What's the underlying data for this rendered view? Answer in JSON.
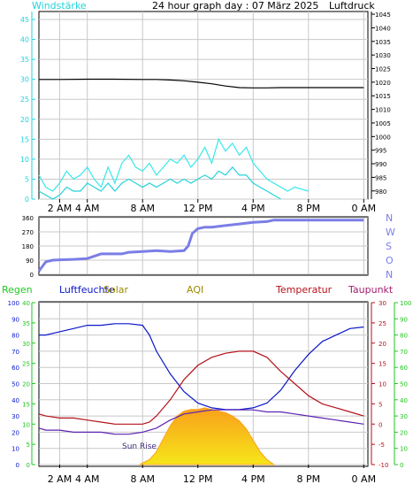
{
  "header": {
    "title": "24 hour graph day : 07 März 2025",
    "left_label": "Windstärke",
    "right_label": "Luftdruck"
  },
  "time_axis": {
    "ticks": [
      "2 AM",
      "4 AM",
      "8 AM",
      "12 PM",
      "4 PM",
      "8 PM",
      "0 AM"
    ],
    "tick_hours": [
      2,
      4,
      8,
      12,
      16,
      20,
      24
    ]
  },
  "colors": {
    "wind": "#22d3d9",
    "gust": "#36e8ea",
    "pressure": "#000000",
    "direction": "#7b7ee6",
    "humidity": "#0a17c9",
    "temperature": "#b5121b",
    "dewpoint": "#5c23b3",
    "solar_top": "#f9a01b",
    "solar_bottom": "#f6e61a",
    "rain": "#22c522",
    "aqi": "#9a8a00",
    "tau": "#a11e6e",
    "light_label": "#3d2b7d"
  },
  "chart_data": [
    {
      "type": "line",
      "title": "24 hour graph day : 07 März 2025",
      "left_axis": {
        "label": "Windstärke",
        "range": [
          0,
          47
        ],
        "ticks": [
          0,
          5,
          10,
          15,
          20,
          25,
          30,
          35,
          40,
          45
        ]
      },
      "right_axis": {
        "label": "Luftdruck",
        "range": [
          977,
          1046
        ],
        "ticks": [
          980,
          985,
          990,
          995,
          1000,
          1005,
          1010,
          1015,
          1020,
          1025,
          1030,
          1035,
          1040,
          1045
        ]
      },
      "x_range": [
        0.5,
        24.3
      ],
      "grid": true,
      "series": [
        {
          "name": "Luftdruck",
          "axis": "right",
          "x": [
            0.5,
            2,
            4,
            6,
            8,
            9,
            10,
            11,
            12,
            13,
            14,
            15,
            16,
            17,
            18,
            20,
            22,
            24
          ],
          "y": [
            1021.0,
            1021.0,
            1021.1,
            1021.1,
            1021.0,
            1021.0,
            1020.8,
            1020.5,
            1020.0,
            1019.4,
            1018.6,
            1018.0,
            1017.9,
            1017.9,
            1018.0,
            1018.0,
            1018.0,
            1018.0
          ]
        },
        {
          "axis": "left",
          "x": [
            0.5,
            1,
            1.5,
            2,
            2.5,
            3,
            3.5,
            4,
            4.5,
            5,
            5.5,
            6,
            6.5,
            7,
            7.5,
            8,
            8.5,
            9,
            9.5,
            10,
            10.5,
            11,
            11.5,
            12,
            12.5,
            13,
            13.5,
            14,
            14.5,
            15,
            15.5,
            16,
            16.5,
            17,
            17.5,
            18
          ],
          "y": [
            2,
            1,
            0,
            1,
            3,
            2,
            2,
            4,
            3,
            2,
            4,
            2,
            4,
            5,
            4,
            3,
            4,
            3,
            4,
            5,
            4,
            5,
            4,
            5,
            6,
            5,
            7,
            6,
            8,
            6,
            6,
            4,
            3,
            2,
            1,
            0
          ]
        },
        {
          "axis": "left",
          "x": [
            0.5,
            1,
            1.5,
            2,
            2.5,
            3,
            3.5,
            4,
            4.5,
            5,
            5.5,
            6,
            6.5,
            7,
            7.5,
            8,
            8.5,
            9,
            9.5,
            10,
            10.5,
            11,
            11.5,
            12,
            12.5,
            13,
            13.5,
            14,
            14.5,
            15,
            15.5,
            16,
            16.5,
            17,
            17.5,
            18,
            18.5,
            19,
            20
          ],
          "y": [
            6,
            3,
            2,
            4,
            7,
            5,
            6,
            8,
            5,
            3,
            8,
            4,
            9,
            11,
            8,
            7,
            9,
            6,
            8,
            10,
            9,
            11,
            8,
            10,
            13,
            9,
            15,
            12,
            14,
            11,
            13,
            9,
            7,
            5,
            4,
            3,
            2,
            3,
            2
          ]
        }
      ]
    },
    {
      "type": "scatter",
      "left_axis": {
        "range": [
          0,
          360
        ],
        "ticks": [
          0,
          90,
          180,
          270,
          360
        ]
      },
      "right_labels": [
        "N",
        "W",
        "S",
        "O",
        "N"
      ],
      "series": [
        {
          "x": [
            0.5,
            1.0,
            1.5,
            2,
            3,
            4,
            5,
            6,
            6.5,
            7,
            8,
            9,
            10,
            11,
            11.3,
            11.6,
            12,
            12.5,
            13,
            14,
            15,
            16,
            17,
            17.5,
            18,
            19,
            20,
            21,
            22,
            23,
            24
          ],
          "y": [
            20,
            80,
            90,
            92,
            95,
            100,
            130,
            130,
            130,
            140,
            145,
            150,
            145,
            150,
            180,
            260,
            290,
            300,
            300,
            310,
            320,
            330,
            335,
            345,
            345,
            345,
            345,
            345,
            345,
            345,
            345
          ]
        }
      ]
    },
    {
      "type": "line",
      "legend": [
        "Regen",
        "Luftfeuchte",
        "Solar",
        "AQI",
        "Temperatur",
        "Taupunkt"
      ],
      "axes": {
        "humidity": {
          "range": [
            0,
            100
          ],
          "ticks": [
            0,
            10,
            20,
            30,
            40,
            50,
            60,
            70,
            80,
            90,
            100
          ]
        },
        "rain": {
          "range": [
            0,
            40
          ],
          "ticks": [
            0,
            5,
            10,
            15,
            20,
            25,
            30,
            35,
            40
          ]
        },
        "temperature": {
          "range": [
            -10,
            30
          ],
          "ticks": [
            -10,
            -5,
            0,
            5,
            10,
            15,
            20,
            25,
            30
          ]
        },
        "tau": {
          "range": [
            0,
            100
          ],
          "ticks": [
            0,
            10,
            20,
            30,
            40,
            50,
            60,
            70,
            80,
            90,
            100
          ]
        }
      },
      "annotation": "Sun Rise",
      "series": [
        {
          "name": "Luftfeuchte",
          "axis": "humidity",
          "x": [
            0.5,
            1,
            2,
            3,
            4,
            5,
            6,
            7,
            8,
            8.5,
            9,
            10,
            11,
            12,
            13,
            14,
            15,
            16,
            17,
            18,
            19,
            20,
            21,
            22,
            23,
            24
          ],
          "y": [
            80,
            80,
            82,
            84,
            86,
            86,
            87,
            87,
            86,
            80,
            70,
            56,
            45,
            38,
            35,
            34,
            34,
            35,
            38,
            46,
            58,
            68,
            76,
            80,
            84,
            85
          ]
        },
        {
          "name": "Temperatur",
          "axis": "temperature",
          "x": [
            0.5,
            1,
            2,
            3,
            4,
            5,
            6,
            7,
            8,
            8.5,
            9,
            10,
            11,
            12,
            13,
            14,
            15,
            16,
            17,
            18,
            19,
            20,
            21,
            22,
            23,
            24
          ],
          "y": [
            2.5,
            2.0,
            1.5,
            1.5,
            1.0,
            0.5,
            0.0,
            0.0,
            0.0,
            0.5,
            2.0,
            6.0,
            11.0,
            14.5,
            16.5,
            17.5,
            18.0,
            18.0,
            16.5,
            13.0,
            10.0,
            7.0,
            5.0,
            4.0,
            3.0,
            2.0
          ]
        },
        {
          "name": "Taupunkt",
          "axis": "temperature",
          "x": [
            0.5,
            1,
            2,
            3,
            4,
            5,
            6,
            7,
            8,
            9,
            10,
            11,
            12,
            13,
            14,
            15,
            16,
            17,
            18,
            19,
            20,
            21,
            22,
            23,
            24
          ],
          "y": [
            -1.0,
            -1.5,
            -1.5,
            -2.0,
            -2.0,
            -2.0,
            -2.5,
            -2.5,
            -2.0,
            -1.0,
            1.0,
            2.5,
            3.0,
            3.5,
            3.5,
            3.5,
            3.5,
            3.0,
            3.0,
            2.5,
            2.0,
            1.5,
            1.0,
            0.5,
            0.0
          ]
        },
        {
          "name": "Solar",
          "axis": "humidity",
          "x": [
            7.8,
            8.0,
            8.5,
            9.0,
            9.5,
            10.0,
            10.5,
            11.0,
            11.5,
            12.0,
            12.5,
            13.0,
            13.5,
            14.0,
            14.5,
            15.0,
            15.5,
            16.0,
            16.5,
            17.0,
            17.5
          ],
          "y": [
            0,
            1,
            3,
            8,
            16,
            24,
            30,
            33,
            34,
            34,
            35,
            34,
            33,
            32,
            30,
            27,
            22,
            15,
            8,
            3,
            0
          ]
        }
      ]
    }
  ]
}
